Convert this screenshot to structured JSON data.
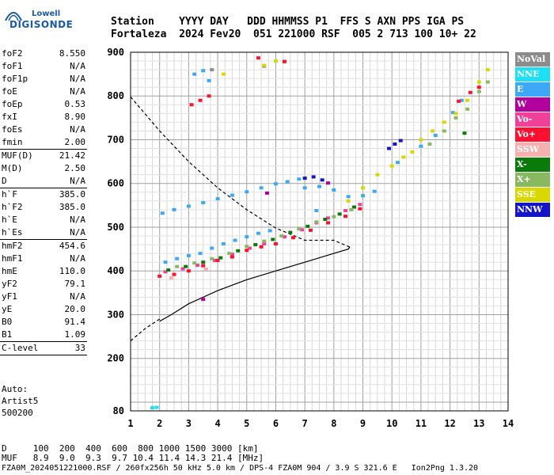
{
  "logo": {
    "line1": "Lowell",
    "line2": "DIGISONDE"
  },
  "header": {
    "line1": "Station    YYYY DAY   DDD HHMMSS P1  FFS S AXN PPS IGA PS",
    "line2": "Fortaleza  2024 Fev20  051 221000 RSF  005 2 713 100 10+ 22"
  },
  "params": [
    {
      "label": "foF2",
      "value": "8.550"
    },
    {
      "label": "foF1",
      "value": "N/A"
    },
    {
      "label": "foF1p",
      "value": "N/A"
    },
    {
      "label": "foE",
      "value": "N/A"
    },
    {
      "label": "foEp",
      "value": "0.53"
    },
    {
      "label": "fxI",
      "value": "8.90"
    },
    {
      "label": "foEs",
      "value": "N/A"
    },
    {
      "label": "fmin",
      "value": "2.00"
    },
    {
      "sep": true
    },
    {
      "label": "MUF(D)",
      "value": "21.42"
    },
    {
      "label": "M(D)",
      "value": "2.50"
    },
    {
      "label": "D",
      "value": "N/A"
    },
    {
      "sep": true
    },
    {
      "label": "h`F",
      "value": "385.0"
    },
    {
      "label": "h`F2",
      "value": "385.0"
    },
    {
      "label": "h`E",
      "value": "N/A"
    },
    {
      "label": "h`Es",
      "value": "N/A"
    },
    {
      "sep": true
    },
    {
      "label": "hmF2",
      "value": "454.6"
    },
    {
      "label": "hmF1",
      "value": "N/A"
    },
    {
      "label": "hmE",
      "value": "110.0"
    },
    {
      "label": "yF2",
      "value": "79.1"
    },
    {
      "label": "yF1",
      "value": "N/A"
    },
    {
      "label": "yE",
      "value": "20.0"
    },
    {
      "label": "B0",
      "value": "91.4"
    },
    {
      "label": "B1",
      "value": "1.09"
    },
    {
      "sep": true
    },
    {
      "label": "C-level",
      "value": "33"
    },
    {
      "sep": true
    }
  ],
  "auto": {
    "line1": "Auto:",
    "line2": "Artist5",
    "line3": "500200"
  },
  "legend": [
    {
      "label": "NoVal",
      "color": "#8c8c8c"
    },
    {
      "label": "NNE",
      "color": "#1ee0f5"
    },
    {
      "label": "E",
      "color": "#3da8f5"
    },
    {
      "label": "W",
      "color": "#b2009f"
    },
    {
      "label": "Vo-",
      "color": "#f0409a"
    },
    {
      "label": "Vo+",
      "color": "#ff1030"
    },
    {
      "label": "SSW",
      "color": "#f5b0b0"
    },
    {
      "label": "X-",
      "color": "#0a7a0a"
    },
    {
      "label": "X+",
      "color": "#88b860"
    },
    {
      "label": "SSE",
      "color": "#d8d800"
    },
    {
      "label": "NNW",
      "color": "#1414c8"
    }
  ],
  "bottom": {
    "d_row": "D     100  200  400  600  800 1000 1500 3000 [km]",
    "muf_row": "MUF   8.9  9.0  9.3  9.7 10.4 11.4 14.3 21.4 [MHz]",
    "footer": "FZA0M_2024051221000.RSF / 260fx256h 50 kHz 5.0 km / DPS-4 FZA0M 904 / 3.9 S 321.6 E   Ion2Png 1.3.20"
  },
  "chart_data": {
    "type": "scatter",
    "title": "",
    "xlabel": "",
    "ylabel": "",
    "xlim": [
      1,
      14
    ],
    "ylim": [
      80,
      900
    ],
    "x_ticks": [
      1,
      2,
      3,
      4,
      5,
      6,
      7,
      8,
      9,
      10,
      11,
      12,
      13,
      14
    ],
    "y_ticks": [
      80,
      200,
      300,
      400,
      500,
      600,
      700,
      800,
      900
    ],
    "grid": true,
    "series": [
      {
        "name": "NoVal",
        "color": "#8c8c8c",
        "points": [
          [
            3.8,
            860
          ],
          [
            5.6,
            868
          ],
          [
            6.3,
            878
          ]
        ]
      },
      {
        "name": "NNE",
        "color": "#1ee0f5",
        "points": [
          [
            1.75,
            87
          ],
          [
            1.9,
            88
          ]
        ]
      },
      {
        "name": "E",
        "color": "#3da8f5",
        "points": [
          [
            2.1,
            532
          ],
          [
            2.5,
            540
          ],
          [
            3.0,
            548
          ],
          [
            3.5,
            556
          ],
          [
            4.0,
            565
          ],
          [
            4.5,
            573
          ],
          [
            5.0,
            581
          ],
          [
            5.5,
            590
          ],
          [
            6.0,
            599
          ],
          [
            6.4,
            604
          ],
          [
            7.0,
            590
          ],
          [
            7.5,
            593
          ],
          [
            8.0,
            585
          ],
          [
            8.5,
            570
          ],
          [
            2.2,
            420
          ],
          [
            2.6,
            428
          ],
          [
            3.0,
            435
          ],
          [
            3.4,
            440
          ],
          [
            3.8,
            452
          ],
          [
            4.2,
            462
          ],
          [
            4.6,
            470
          ],
          [
            5.0,
            478
          ],
          [
            5.4,
            486
          ],
          [
            5.8,
            492
          ],
          [
            3.2,
            850
          ],
          [
            3.5,
            858
          ],
          [
            3.7,
            835
          ],
          [
            9.0,
            572
          ],
          [
            9.4,
            582
          ],
          [
            10.2,
            648
          ],
          [
            11.0,
            685
          ],
          [
            11.5,
            710
          ],
          [
            12.1,
            762
          ],
          [
            12.4,
            790
          ],
          [
            6.8,
            610
          ],
          [
            7.4,
            538
          ]
        ]
      },
      {
        "name": "W",
        "color": "#b2009f",
        "points": [
          [
            3.5,
            335
          ],
          [
            5.7,
            578
          ],
          [
            7.8,
            601
          ]
        ]
      },
      {
        "name": "Vo-",
        "color": "#f0409a",
        "points": [
          [
            2.2,
            398
          ],
          [
            2.8,
            405
          ],
          [
            3.3,
            413
          ],
          [
            3.9,
            424
          ],
          [
            4.5,
            438
          ],
          [
            5.1,
            452
          ],
          [
            5.6,
            462
          ],
          [
            6.3,
            478
          ],
          [
            6.9,
            494
          ],
          [
            7.4,
            510
          ],
          [
            7.8,
            521
          ],
          [
            8.4,
            538
          ],
          [
            8.9,
            552
          ]
        ]
      },
      {
        "name": "Vo+",
        "color": "#ff1030",
        "points": [
          [
            2.0,
            388
          ],
          [
            2.5,
            392
          ],
          [
            3.0,
            400
          ],
          [
            3.5,
            412
          ],
          [
            4.0,
            424
          ],
          [
            4.5,
            432
          ],
          [
            5.0,
            447
          ],
          [
            5.5,
            455
          ],
          [
            6.0,
            462
          ],
          [
            6.6,
            476
          ],
          [
            7.2,
            493
          ],
          [
            7.8,
            510
          ],
          [
            8.4,
            525
          ],
          [
            8.9,
            542
          ],
          [
            3.1,
            780
          ],
          [
            3.4,
            790
          ],
          [
            3.7,
            800
          ],
          [
            6.3,
            879
          ],
          [
            5.4,
            887
          ],
          [
            12.3,
            788
          ],
          [
            12.7,
            808
          ],
          [
            13.0,
            820
          ]
        ]
      },
      {
        "name": "SSW",
        "color": "#f5b0b0",
        "points": [
          [
            2.4,
            384
          ],
          [
            3.6,
            404
          ]
        ]
      },
      {
        "name": "X-",
        "color": "#0a7a0a",
        "points": [
          [
            2.3,
            402
          ],
          [
            2.9,
            410
          ],
          [
            3.5,
            420
          ],
          [
            4.1,
            430
          ],
          [
            4.7,
            446
          ],
          [
            5.3,
            460
          ],
          [
            5.9,
            472
          ],
          [
            6.5,
            488
          ],
          [
            7.1,
            502
          ],
          [
            7.7,
            518
          ],
          [
            8.2,
            530
          ],
          [
            8.7,
            546
          ],
          [
            12.5,
            715
          ]
        ]
      },
      {
        "name": "X+",
        "color": "#88b860",
        "points": [
          [
            2.6,
            410
          ],
          [
            3.2,
            418
          ],
          [
            3.8,
            428
          ],
          [
            4.4,
            440
          ],
          [
            5.0,
            456
          ],
          [
            5.6,
            468
          ],
          [
            6.2,
            480
          ],
          [
            6.8,
            496
          ],
          [
            7.4,
            512
          ],
          [
            8.0,
            524
          ],
          [
            8.6,
            540
          ],
          [
            11.3,
            690
          ],
          [
            11.8,
            720
          ],
          [
            12.2,
            750
          ],
          [
            12.6,
            770
          ],
          [
            13.0,
            810
          ],
          [
            13.3,
            832
          ]
        ]
      },
      {
        "name": "SSE",
        "color": "#d8d800",
        "points": [
          [
            8.5,
            560
          ],
          [
            9.0,
            590
          ],
          [
            9.5,
            620
          ],
          [
            10.0,
            640
          ],
          [
            10.4,
            660
          ],
          [
            10.7,
            672
          ],
          [
            11.0,
            700
          ],
          [
            11.4,
            720
          ],
          [
            11.8,
            740
          ],
          [
            12.2,
            760
          ],
          [
            12.6,
            790
          ],
          [
            13.0,
            832
          ],
          [
            13.3,
            860
          ],
          [
            4.2,
            850
          ],
          [
            5.6,
            870
          ],
          [
            6.0,
            880
          ]
        ]
      },
      {
        "name": "NNW",
        "color": "#1414c8",
        "points": [
          [
            7.0,
            612
          ],
          [
            7.3,
            615
          ],
          [
            7.6,
            608
          ],
          [
            9.9,
            680
          ],
          [
            10.1,
            690
          ],
          [
            10.3,
            698
          ]
        ]
      }
    ],
    "trace_dashed": [
      [
        1,
        798
      ],
      [
        2,
        720
      ],
      [
        3,
        650
      ],
      [
        4,
        590
      ],
      [
        5,
        540
      ],
      [
        6,
        498
      ],
      [
        7,
        470
      ],
      [
        8,
        470
      ],
      [
        8.55,
        454.6
      ]
    ],
    "trace_solid": [
      [
        2,
        285
      ],
      [
        2.4,
        300
      ],
      [
        3,
        325
      ],
      [
        4,
        355
      ],
      [
        5,
        380
      ],
      [
        6,
        400
      ],
      [
        7,
        420
      ],
      [
        8,
        440
      ],
      [
        8.5,
        450
      ],
      [
        8.55,
        454.6
      ]
    ],
    "trace_lower_dashed": [
      [
        1,
        240
      ],
      [
        1.5,
        268
      ],
      [
        2,
        290
      ]
    ]
  }
}
